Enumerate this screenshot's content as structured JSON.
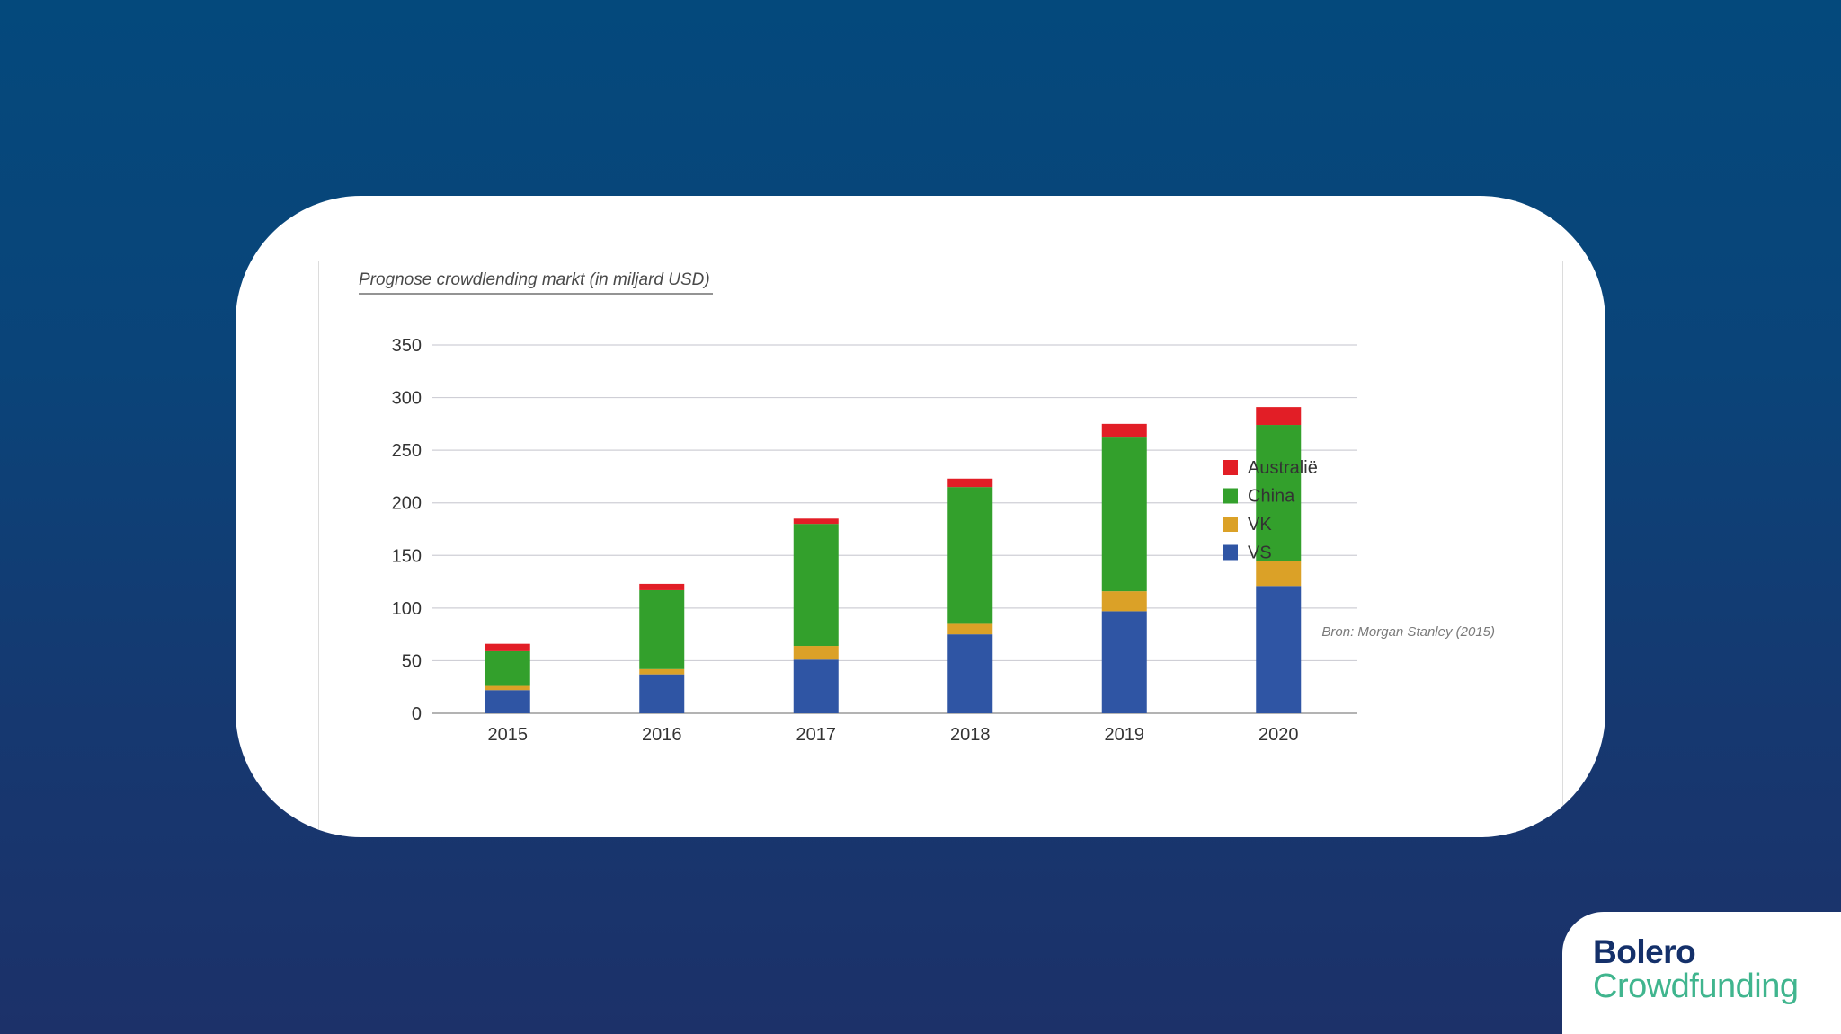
{
  "colors": {
    "background_top": "#04497c",
    "background_bottom": "#1c3169",
    "card": "#ffffff",
    "logo_primary": "#14306a",
    "logo_accent": "#40b58e"
  },
  "logo": {
    "line1": "Bolero",
    "line2": "Crowdfunding"
  },
  "chart_data": {
    "type": "bar",
    "stacked": true,
    "title": "Prognose crowdlending markt (in miljard USD)",
    "xlabel": "",
    "ylabel": "",
    "categories": [
      "2015",
      "2016",
      "2017",
      "2018",
      "2019",
      "2020"
    ],
    "ylim": [
      0,
      350
    ],
    "yticks": [
      0,
      50,
      100,
      150,
      200,
      250,
      300,
      350
    ],
    "grid": true,
    "legend_position": "right",
    "series": [
      {
        "name": "VS",
        "color": "#2f55a4",
        "values": [
          22,
          37,
          51,
          75,
          97,
          121
        ]
      },
      {
        "name": "VK",
        "color": "#dba127",
        "values": [
          4,
          5,
          13,
          10,
          19,
          24
        ]
      },
      {
        "name": "China",
        "color": "#33a02c",
        "values": [
          33,
          75,
          116,
          130,
          146,
          129
        ]
      },
      {
        "name": "Australië",
        "color": "#e21e26",
        "values": [
          7,
          6,
          5,
          8,
          13,
          17
        ]
      }
    ],
    "legend_order": [
      "Australië",
      "China",
      "VK",
      "VS"
    ],
    "source": "Bron: Morgan Stanley (2015)"
  }
}
